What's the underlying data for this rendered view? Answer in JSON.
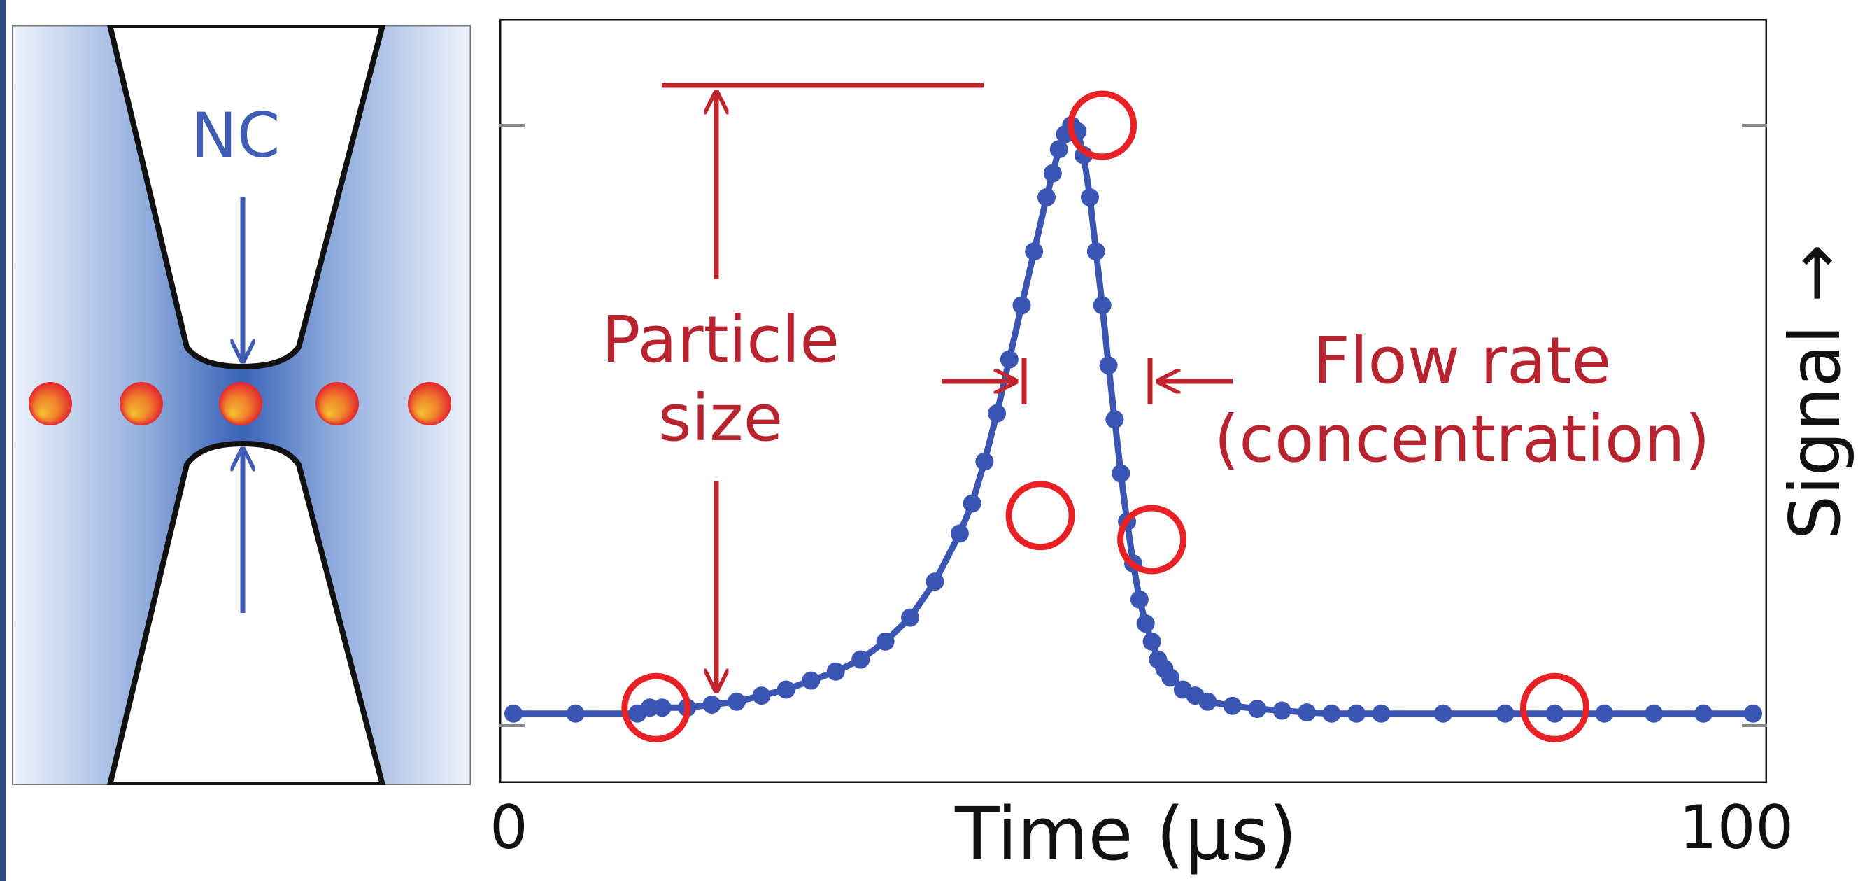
{
  "colors": {
    "channel_blue": "#3a63b8",
    "particle_red": "#e3262f",
    "particle_yellow": "#f5c431",
    "annotation_red": "#c0242d",
    "signal_blue": "#3b55b3",
    "marker_red": "#e82126"
  },
  "channel": {
    "label": "NC",
    "particle_count": 5
  },
  "annotations": {
    "particle_size": "Particle size",
    "flow_rate": "Flow rate (concentration)"
  },
  "chart_data": {
    "type": "scatter",
    "xlabel": "Time (µs)",
    "ylabel": "Signal →",
    "xlim": [
      0,
      100
    ],
    "ylim": [
      0,
      1
    ],
    "x_ticks": [
      "0",
      "100"
    ],
    "series": [
      {
        "x": [
          0,
          5,
          10,
          11,
          12,
          14,
          16,
          18,
          20,
          22,
          24,
          26,
          28,
          30,
          32,
          34,
          36,
          37,
          38,
          39,
          40,
          41,
          42,
          43,
          43.5,
          44,
          44.5,
          45,
          45.5,
          46,
          46.5,
          47,
          47.5,
          48,
          48.5,
          49,
          49.5,
          50,
          50.5,
          51,
          51.5,
          52,
          52.5,
          53,
          54,
          55,
          56,
          58,
          60,
          62,
          64,
          66,
          68,
          70,
          75,
          80,
          84,
          88,
          92,
          96,
          100
        ],
        "y": [
          0.02,
          0.02,
          0.02,
          0.03,
          0.03,
          0.03,
          0.035,
          0.04,
          0.05,
          0.06,
          0.075,
          0.09,
          0.11,
          0.14,
          0.18,
          0.24,
          0.32,
          0.37,
          0.44,
          0.52,
          0.61,
          0.7,
          0.79,
          0.88,
          0.92,
          0.96,
          0.985,
          1.0,
          0.99,
          0.95,
          0.88,
          0.79,
          0.7,
          0.6,
          0.51,
          0.42,
          0.34,
          0.27,
          0.21,
          0.17,
          0.14,
          0.11,
          0.095,
          0.08,
          0.06,
          0.05,
          0.04,
          0.033,
          0.028,
          0.025,
          0.022,
          0.02,
          0.02,
          0.02,
          0.02,
          0.02,
          0.02,
          0.02,
          0.02,
          0.02,
          0.02
        ]
      }
    ],
    "markers": [
      {
        "x": 11.5,
        "y": 0.03
      },
      {
        "x": 42.5,
        "y": 0.35
      },
      {
        "x": 47.5,
        "y": 1.0
      },
      {
        "x": 51.5,
        "y": 0.31
      },
      {
        "x": 84,
        "y": 0.03
      }
    ]
  }
}
